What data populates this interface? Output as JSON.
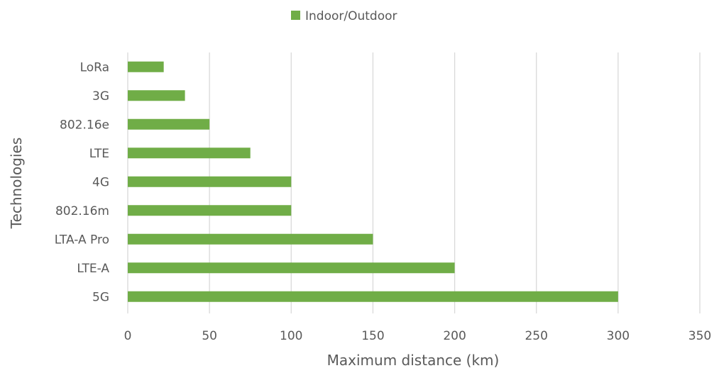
{
  "chart_data": {
    "type": "bar",
    "orientation": "horizontal",
    "categories": [
      "LoRa",
      "3G",
      "802.16e",
      "LTE",
      "4G",
      "802.16m",
      "LTA-A Pro",
      "LTE-A",
      "5G"
    ],
    "series": [
      {
        "name": "Indoor/Outdoor",
        "color": "#70ad47",
        "values": [
          22,
          35,
          50,
          75,
          100,
          100,
          150,
          200,
          300
        ]
      }
    ],
    "xlabel": "Maximum distance (km)",
    "ylabel": "Technologies",
    "xlim": [
      0,
      350
    ],
    "xticks": [
      0,
      50,
      100,
      150,
      200,
      250,
      300,
      350
    ],
    "grid": "vertical",
    "legend": "top-center"
  }
}
